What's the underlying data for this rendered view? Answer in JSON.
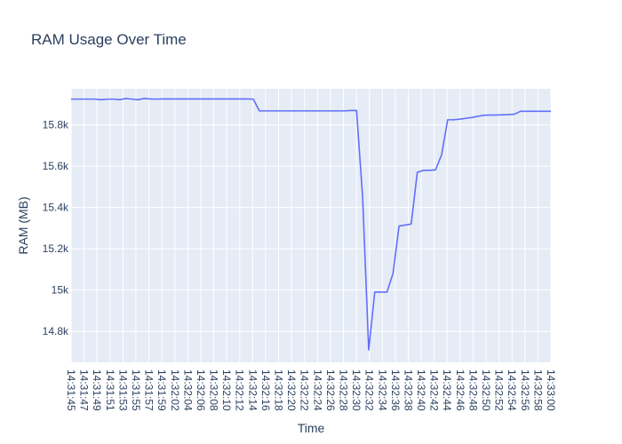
{
  "chart_data": {
    "type": "line",
    "title": "RAM Usage Over Time",
    "xlabel": "Time",
    "ylabel": "RAM (MB)",
    "grid": true,
    "legend": "none",
    "colors": {
      "line": "#636efa",
      "plot_bg": "#e5ecf6",
      "grid": "#ffffff",
      "text": "#2a3f5f"
    },
    "x_tick_labels": [
      "14:31:45",
      "14:31:47",
      "14:31:49",
      "14:31:51",
      "14:31:53",
      "14:31:55",
      "14:31:57",
      "14:31:59",
      "14:32:02",
      "14:32:04",
      "14:32:06",
      "14:32:08",
      "14:32:10",
      "14:32:12",
      "14:32:14",
      "14:32:16",
      "14:32:18",
      "14:32:20",
      "14:32:22",
      "14:32:24",
      "14:32:26",
      "14:32:28",
      "14:32:30",
      "14:32:32",
      "14:32:34",
      "14:32:36",
      "14:32:38",
      "14:32:40",
      "14:32:42",
      "14:32:44",
      "14:32:46",
      "14:32:48",
      "14:32:50",
      "14:32:52",
      "14:32:54",
      "14:32:56",
      "14:32:58",
      "14:33:00"
    ],
    "y_ticks": [
      14800,
      15000,
      15200,
      15400,
      15600,
      15800
    ],
    "y_tick_labels": [
      "14.8k",
      "15k",
      "15.2k",
      "15.4k",
      "15.6k",
      "15.8k"
    ],
    "ylim": [
      14650,
      15975
    ],
    "series": [
      {
        "values": [
          15925,
          15925,
          15925,
          15925,
          15925,
          15922,
          15925,
          15925,
          15922,
          15928,
          15925,
          15922,
          15928,
          15926,
          15925,
          15926,
          15926,
          15926,
          15926,
          15926,
          15926,
          15926,
          15926,
          15926,
          15926,
          15926,
          15926,
          15926,
          15926,
          15926,
          15925,
          15868,
          15868,
          15868,
          15868,
          15868,
          15868,
          15868,
          15868,
          15868,
          15868,
          15868,
          15868,
          15868,
          15868,
          15868,
          15870,
          15870,
          15450,
          14710,
          14990,
          14990,
          14990,
          15080,
          15310,
          15315,
          15320,
          15570,
          15580,
          15580,
          15582,
          15655,
          15825,
          15825,
          15828,
          15832,
          15836,
          15842,
          15847,
          15848,
          15848,
          15849,
          15850,
          15852,
          15866,
          15866,
          15866,
          15866,
          15866,
          15866
        ]
      }
    ]
  }
}
